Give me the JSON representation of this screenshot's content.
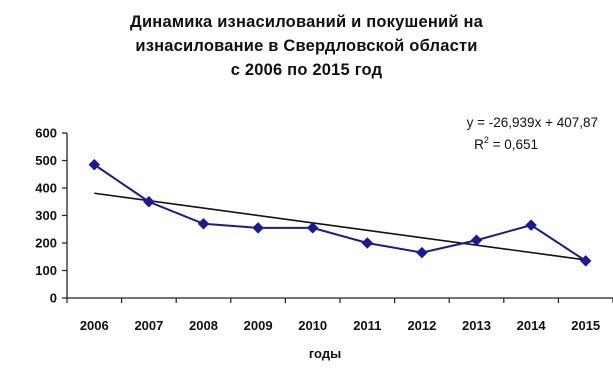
{
  "chart_data": {
    "type": "line",
    "title_lines": [
      "Динамика изнасилований и покушений на",
      "изнасилование в Свердловской области",
      "с 2006 по 2015 год"
    ],
    "xlabel": "годы",
    "ylabel": "",
    "categories": [
      "2006",
      "2007",
      "2008",
      "2009",
      "2010",
      "2011",
      "2012",
      "2013",
      "2014",
      "2015"
    ],
    "series": [
      {
        "values": [
          485,
          350,
          270,
          255,
          255,
          200,
          165,
          210,
          265,
          135
        ],
        "color": "#1a1a99"
      }
    ],
    "trendline": {
      "equation": "y = -26,939x + 407,87",
      "r2_prefix": "R",
      "r2_sup": "2",
      "r2_value": " = 0,651",
      "slope": -26.939,
      "intercept": 407.87,
      "color": "#111111"
    },
    "yticks": [
      "0",
      "100",
      "200",
      "300",
      "400",
      "500",
      "600"
    ],
    "ylim": [
      0,
      600
    ],
    "grid": false,
    "legend": "none"
  }
}
